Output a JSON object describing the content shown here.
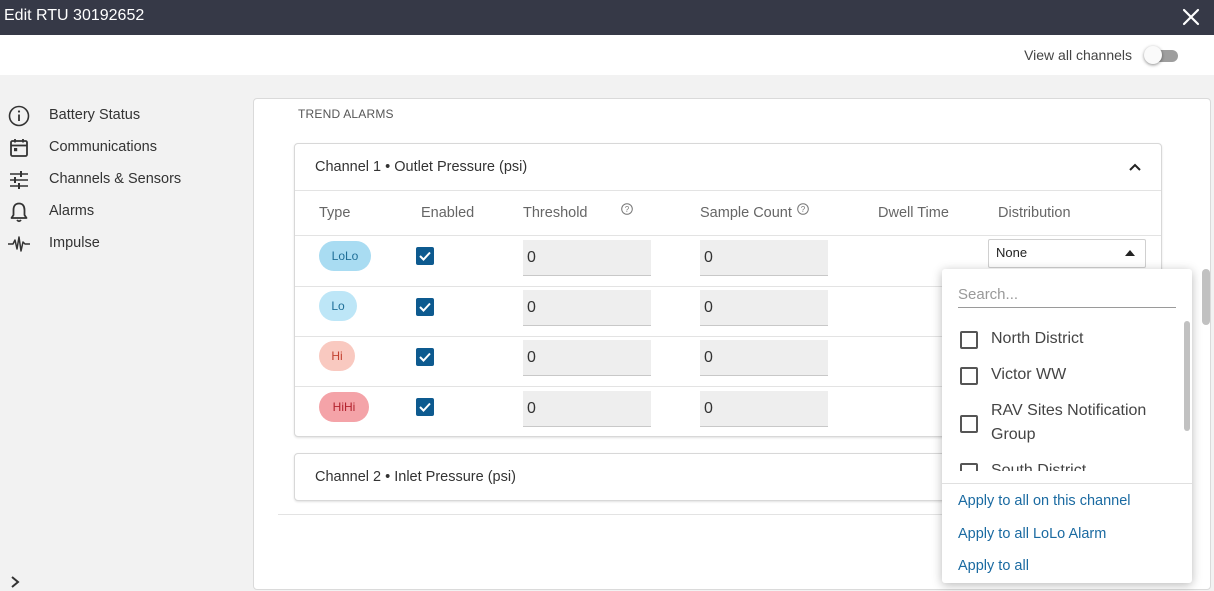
{
  "window": {
    "title": "Edit RTU 30192652"
  },
  "topbar": {
    "view_all_channels_label": "View all channels",
    "view_all_channels_on": false
  },
  "sidebar": {
    "items": [
      {
        "label": "Battery Status",
        "icon": "info-icon"
      },
      {
        "label": "Communications",
        "icon": "calendar-icon"
      },
      {
        "label": "Channels & Sensors",
        "icon": "sliders-icon"
      },
      {
        "label": "Alarms",
        "icon": "bell-icon"
      },
      {
        "label": "Impulse",
        "icon": "pulse-icon"
      }
    ]
  },
  "section": {
    "title": "TREND ALARMS"
  },
  "channels": [
    {
      "title": "Channel 1 • Outlet Pressure (psi)",
      "expanded": true,
      "columns": [
        "Type",
        "Enabled",
        "Threshold",
        "Sample Count",
        "Dwell Time",
        "Distribution"
      ],
      "rows": [
        {
          "type": "LoLo",
          "enabled": true,
          "threshold": "0",
          "sample_count": "0",
          "distribution": "None"
        },
        {
          "type": "Lo",
          "enabled": true,
          "threshold": "0",
          "sample_count": "0"
        },
        {
          "type": "Hi",
          "enabled": true,
          "threshold": "0",
          "sample_count": "0"
        },
        {
          "type": "HiHi",
          "enabled": true,
          "threshold": "0",
          "sample_count": "0"
        }
      ]
    },
    {
      "title": "Channel 2 • Inlet Pressure (psi)",
      "expanded": false
    }
  ],
  "dropdown": {
    "search_placeholder": "Search...",
    "options": [
      {
        "label": "North District",
        "checked": false
      },
      {
        "label": "Victor WW",
        "checked": false
      },
      {
        "label": "RAV Sites Notification Group",
        "checked": false
      },
      {
        "label": "South District",
        "checked": false
      }
    ],
    "actions": [
      "Apply to all on this channel",
      "Apply to all LoLo Alarm",
      "Apply to all"
    ]
  },
  "colors": {
    "titlebar": "#363947",
    "accent": "#0d5a8f",
    "link": "#1a6aa1",
    "lolo": "#a9dcf2",
    "lo": "#bde6f7",
    "hi": "#f9c9c0",
    "hihi": "#f4a3a8"
  }
}
